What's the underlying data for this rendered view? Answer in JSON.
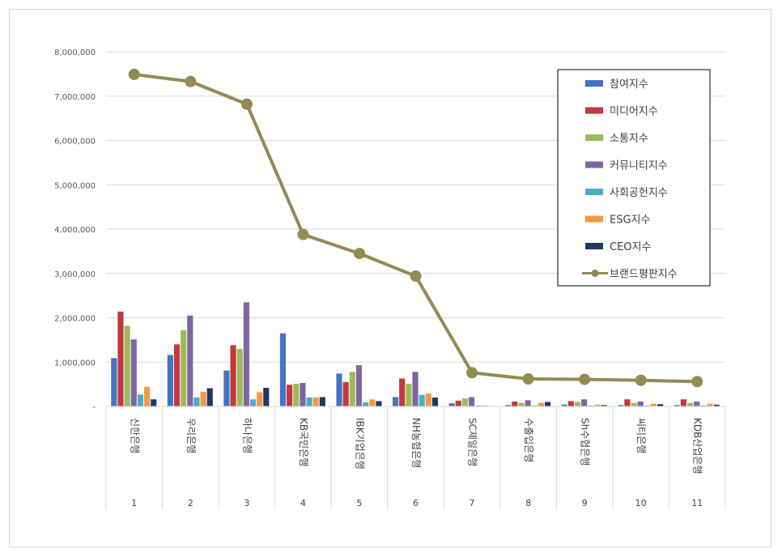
{
  "chart_data": {
    "type": "bar",
    "categories": [
      "1",
      "2",
      "3",
      "4",
      "5",
      "6",
      "7",
      "8",
      "9",
      "10",
      "11"
    ],
    "category_names": [
      "신한은행",
      "우리은행",
      "하나은행",
      "KB국민은행",
      "IBK기업은행",
      "NH농협은행",
      "SC제일은행",
      "수출입은행",
      "Sh수협은행",
      "씨티은행",
      "KDB산업은행"
    ],
    "ylim": [
      0,
      8000000
    ],
    "yticks": [
      0,
      1000000,
      2000000,
      3000000,
      4000000,
      5000000,
      6000000,
      7000000,
      8000000
    ],
    "ytick_labels": [
      "-",
      "1,000,000",
      "2,000,000",
      "3,000,000",
      "4,000,000",
      "5,000,000",
      "6,000,000",
      "7,000,000",
      "8,000,000"
    ],
    "grid": true,
    "legend_position": "top-right",
    "series": [
      {
        "name": "참여지수",
        "type": "bar",
        "color": "#4472c4",
        "values": [
          1090000,
          1160000,
          810000,
          1650000,
          740000,
          210000,
          70000,
          30000,
          40000,
          30000,
          30000
        ]
      },
      {
        "name": "미디어지수",
        "type": "bar",
        "color": "#c0393b",
        "values": [
          2140000,
          1400000,
          1380000,
          490000,
          550000,
          630000,
          130000,
          110000,
          120000,
          160000,
          160000
        ]
      },
      {
        "name": "소통지수",
        "type": "bar",
        "color": "#9bbb59",
        "values": [
          1820000,
          1720000,
          1300000,
          510000,
          780000,
          510000,
          180000,
          80000,
          100000,
          80000,
          80000
        ]
      },
      {
        "name": "커뮤니티지수",
        "type": "bar",
        "color": "#8064a2",
        "values": [
          1510000,
          2050000,
          2350000,
          530000,
          930000,
          780000,
          210000,
          140000,
          160000,
          110000,
          110000
        ]
      },
      {
        "name": "사회공헌지수",
        "type": "bar",
        "color": "#4bacc6",
        "values": [
          270000,
          200000,
          160000,
          200000,
          90000,
          260000,
          20000,
          20000,
          20000,
          20000,
          20000
        ]
      },
      {
        "name": "ESG지수",
        "type": "bar",
        "color": "#f79646",
        "values": [
          440000,
          330000,
          320000,
          200000,
          160000,
          290000,
          20000,
          80000,
          40000,
          60000,
          60000
        ]
      },
      {
        "name": "CEO지수",
        "type": "bar",
        "color": "#1f3864",
        "values": [
          160000,
          410000,
          420000,
          210000,
          120000,
          200000,
          10000,
          100000,
          30000,
          50000,
          40000
        ]
      },
      {
        "name": "브랜드평판지수",
        "type": "line",
        "color": "#948a54",
        "values": [
          7490000,
          7330000,
          6820000,
          3880000,
          3450000,
          2940000,
          760000,
          620000,
          610000,
          590000,
          560000
        ]
      }
    ]
  }
}
